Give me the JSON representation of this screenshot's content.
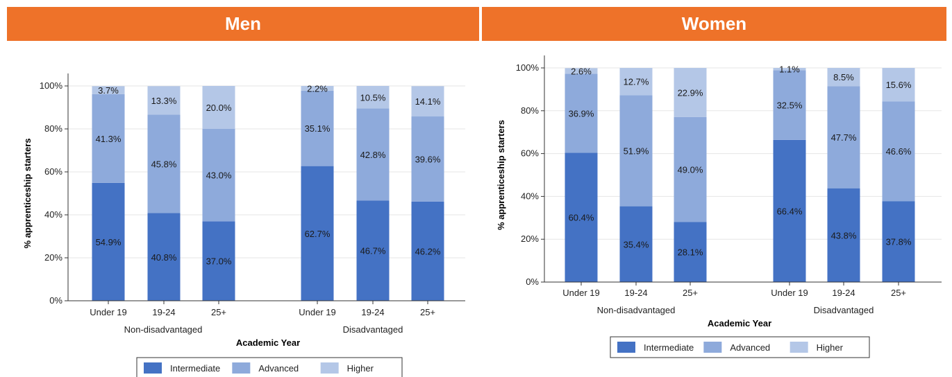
{
  "panels": {
    "men_title": "Men",
    "women_title": "Women",
    "header_color": "#EE7229"
  },
  "legend": {
    "items": [
      {
        "label": "Intermediate",
        "color": "#4472C4"
      },
      {
        "label": "Advanced",
        "color": "#8EAADB"
      },
      {
        "label": "Higher",
        "color": "#B4C7E7"
      }
    ]
  },
  "chart_data": [
    {
      "type": "bar",
      "stacked": true,
      "title": "",
      "xlabel": "Academic Year",
      "ylabel": "% apprenticeship starters",
      "ylim": [
        0,
        100
      ],
      "yticks": [
        "0%",
        "20%",
        "40%",
        "60%",
        "80%",
        "100%"
      ],
      "groups": [
        "Non-disadvantaged",
        "Disadvantaged"
      ],
      "categories": [
        "Under 19",
        "19-24",
        "25+",
        "Under 19",
        "19-24",
        "25+"
      ],
      "series": [
        {
          "name": "Intermediate",
          "values": [
            54.9,
            40.8,
            37.0,
            62.7,
            46.7,
            46.2
          ],
          "labels": [
            "54.9%",
            "40.8%",
            "37.0%",
            "62.7%",
            "46.7%",
            "46.2%"
          ]
        },
        {
          "name": "Advanced",
          "values": [
            41.3,
            45.8,
            43.0,
            35.1,
            42.8,
            39.6
          ],
          "labels": [
            "41.3%",
            "45.8%",
            "43.0%",
            "35.1%",
            "42.8%",
            "39.6%"
          ]
        },
        {
          "name": "Higher",
          "values": [
            3.7,
            13.3,
            20.0,
            2.2,
            10.5,
            14.1
          ],
          "labels": [
            "3.7%",
            "13.3%",
            "20.0%",
            "2.2%",
            "10.5%",
            "14.1%"
          ]
        }
      ],
      "legend_position": "bottom"
    },
    {
      "type": "bar",
      "stacked": true,
      "title": "",
      "xlabel": "Academic Year",
      "ylabel": "% apprenticeship starters",
      "ylim": [
        0,
        100
      ],
      "yticks": [
        "0%",
        "20%",
        "40%",
        "60%",
        "80%",
        "100%"
      ],
      "groups": [
        "Non-disadvantaged",
        "Disadvantaged"
      ],
      "categories": [
        "Under 19",
        "19-24",
        "25+",
        "Under 19",
        "19-24",
        "25+"
      ],
      "series": [
        {
          "name": "Intermediate",
          "values": [
            60.4,
            35.4,
            28.1,
            66.4,
            43.8,
            37.8
          ],
          "labels": [
            "60.4%",
            "35.4%",
            "28.1%",
            "66.4%",
            "43.8%",
            "37.8%"
          ]
        },
        {
          "name": "Advanced",
          "values": [
            36.9,
            51.9,
            49.0,
            32.5,
            47.7,
            46.6
          ],
          "labels": [
            "36.9%",
            "51.9%",
            "49.0%",
            "32.5%",
            "47.7%",
            "46.6%"
          ]
        },
        {
          "name": "Higher",
          "values": [
            2.6,
            12.7,
            22.9,
            1.1,
            8.5,
            15.6
          ],
          "labels": [
            "2.6%",
            "12.7%",
            "22.9%",
            "1.1%",
            "8.5%",
            "15.6%"
          ]
        }
      ],
      "legend_position": "bottom"
    }
  ]
}
